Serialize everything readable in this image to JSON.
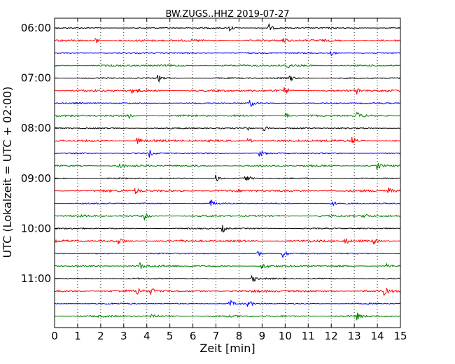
{
  "chart_data": {
    "type": "line",
    "title": "BW.ZUGS..HHZ 2019-07-27",
    "xlabel": "Zeit  [min]",
    "ylabel": "UTC (Lokalzeit = UTC + 02:00)",
    "xlim": [
      0,
      15
    ],
    "x_ticks": [
      0,
      1,
      2,
      3,
      4,
      5,
      6,
      7,
      8,
      9,
      10,
      11,
      12,
      13,
      14,
      15
    ],
    "x_tick_labels": [
      "0",
      "1",
      "2",
      "3",
      "4",
      "5",
      "6",
      "7",
      "8",
      "9",
      "10",
      "11",
      "12",
      "13",
      "14",
      "15"
    ],
    "y_tick_labels": [
      "06:00",
      "07:00",
      "08:00",
      "09:00",
      "10:00",
      "11:00"
    ],
    "grid": "vertical dotted",
    "trace_colors": [
      "#000000",
      "#ff0000",
      "#0000ff",
      "#008000"
    ],
    "traces": [
      {
        "start": "06:00",
        "events_min": [
          7.6,
          9.3
        ]
      },
      {
        "start": "06:15",
        "events_min": [
          1.8,
          9.9
        ]
      },
      {
        "start": "06:30",
        "events_min": [
          12.0
        ]
      },
      {
        "start": "06:45",
        "events_min": [
          10.1
        ]
      },
      {
        "start": "07:00",
        "events_min": [
          4.5,
          10.2
        ]
      },
      {
        "start": "07:15",
        "events_min": [
          3.4,
          10.0,
          13.1
        ]
      },
      {
        "start": "07:30",
        "events_min": [
          8.5
        ]
      },
      {
        "start": "07:45",
        "events_min": [
          3.2,
          10.0,
          13.1
        ]
      },
      {
        "start": "08:00",
        "events_min": [
          8.3,
          9.1
        ]
      },
      {
        "start": "08:15",
        "events_min": [
          3.6,
          8.4,
          12.9
        ]
      },
      {
        "start": "08:30",
        "events_min": [
          4.1,
          8.9
        ]
      },
      {
        "start": "08:45",
        "events_min": [
          2.8,
          14.0
        ]
      },
      {
        "start": "09:00",
        "events_min": [
          7.0,
          8.3
        ]
      },
      {
        "start": "09:15",
        "events_min": [
          3.5,
          14.5
        ]
      },
      {
        "start": "09:30",
        "events_min": [
          6.8,
          12.0
        ]
      },
      {
        "start": "09:45",
        "events_min": [
          3.9,
          13.4
        ]
      },
      {
        "start": "10:00",
        "events_min": [
          7.3
        ]
      },
      {
        "start": "10:15",
        "events_min": [
          2.8,
          12.6,
          13.8
        ]
      },
      {
        "start": "10:30",
        "events_min": [
          8.8,
          9.9
        ]
      },
      {
        "start": "10:45",
        "events_min": [
          3.7,
          9.0,
          14.4
        ]
      },
      {
        "start": "11:00",
        "events_min": [
          8.6
        ]
      },
      {
        "start": "11:15",
        "events_min": [
          3.6,
          4.2,
          14.3
        ]
      },
      {
        "start": "11:30",
        "events_min": [
          7.6,
          8.4
        ]
      },
      {
        "start": "11:45",
        "events_min": [
          4.2,
          13.1
        ]
      }
    ]
  }
}
